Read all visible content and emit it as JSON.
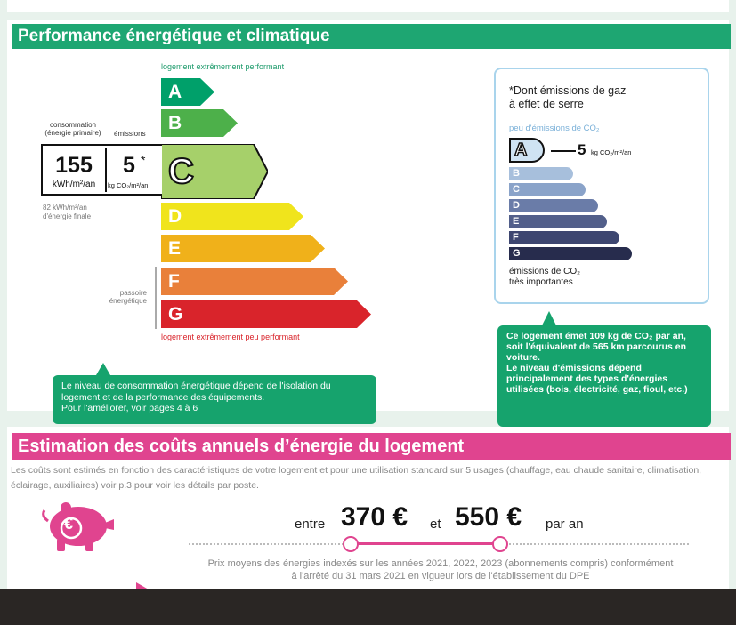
{
  "energy": {
    "title": "Performance énergétique et climatique",
    "top_label": "logement extrêmement performant",
    "bottom_label": "logement extrêmement peu performant",
    "ratings": [
      {
        "letter": "A",
        "color": "#00a06a"
      },
      {
        "letter": "B",
        "color": "#4db04a"
      },
      {
        "letter": "C",
        "color": "#a6d06a"
      },
      {
        "letter": "D",
        "color": "#f0e41c"
      },
      {
        "letter": "E",
        "color": "#f0b11a"
      },
      {
        "letter": "F",
        "color": "#e9803a"
      },
      {
        "letter": "G",
        "color": "#d9242b"
      }
    ],
    "current_rating": "C",
    "consumption_header": "consommation\n(énergie primaire)",
    "emissions_header": "émissions",
    "consumption_value": "155",
    "consumption_unit": "kWh/m²/an",
    "emissions_value": "5",
    "emissions_star": "*",
    "emissions_unit": "kg CO₂/m²/an",
    "final_energy": "82 kWh/m²/an\nd'énergie finale",
    "passoire_label": "passoire\nénergétique",
    "callout": "Le niveau de consommation énergétique dépend de l'isolation du logement et de la performance des équipements.\nPour l'améliorer, voir pages 4 à 6"
  },
  "ghg": {
    "title": "*Dont émissions de gaz\nà effet de serre",
    "top_label": "peu d'émissions de CO₂",
    "value": "5",
    "unit": "kg CO₂/m²/an",
    "ratings": [
      {
        "letter": "A",
        "color": "#cfe3f3"
      },
      {
        "letter": "B",
        "color": "#a7bfdc"
      },
      {
        "letter": "C",
        "color": "#8aa3c9"
      },
      {
        "letter": "D",
        "color": "#6a7ca8"
      },
      {
        "letter": "E",
        "color": "#525f8a"
      },
      {
        "letter": "F",
        "color": "#3d4670"
      },
      {
        "letter": "G",
        "color": "#272c4d"
      }
    ],
    "bottom_label": "émissions de CO₂\ntrès importantes",
    "callout": "Ce logement émet 109 kg de CO₂ par an, soit l'équivalent de 565 km parcourus en voiture.\nLe niveau d'émissions dépend principalement des types d'énergies utilisées (bois, électricité, gaz, fioul, etc.)"
  },
  "costs": {
    "title": "Estimation des coûts annuels d’énergie du logement",
    "description": "Les coûts sont estimés en fonction des caractéristiques de votre logement et pour une utilisation standard sur 5 usages (chauffage, eau chaude sanitaire, climatisation, éclairage, auxiliaires) voir p.3 pour voir les détails par poste.",
    "between": "entre",
    "low": "370 €",
    "and": "et",
    "high": "550 €",
    "per_year": "par an",
    "note": "Prix moyens des énergies indexés sur les années 2021, 2022, 2023 (abonnements compris) conformément\nà l'arrêté du 31 mars 2021 en vigueur lors de l'établissement du DPE",
    "piggy_symbol": "€"
  }
}
